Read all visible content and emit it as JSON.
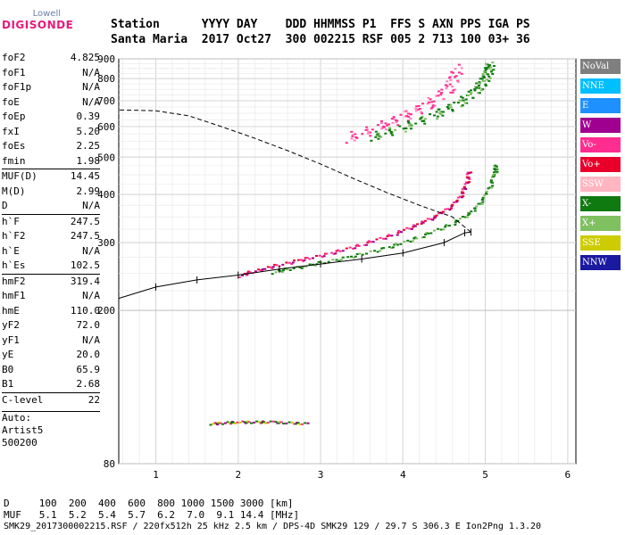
{
  "logo": {
    "top": "Lowell",
    "main": "DIGISONDE"
  },
  "header": {
    "line1": "Station      YYYY DAY    DDD HHMMSS P1  FFS S AXN PPS IGA PS",
    "line2": "Santa Maria  2017 Oct27  300 002215 RSF 005 2 713 100 03+ 36"
  },
  "params": {
    "g1": [
      {
        "k": "foF2",
        "v": "4.825"
      },
      {
        "k": "foF1",
        "v": "N/A"
      },
      {
        "k": "foF1p",
        "v": "N/A"
      },
      {
        "k": "foE",
        "v": "N/A"
      },
      {
        "k": "foEp",
        "v": "0.39"
      },
      {
        "k": "fxI",
        "v": "5.20"
      },
      {
        "k": "foEs",
        "v": "2.25"
      },
      {
        "k": "fmin",
        "v": "1.98"
      }
    ],
    "g2": [
      {
        "k": "MUF(D)",
        "v": "14.45"
      },
      {
        "k": "M(D)",
        "v": "2.99"
      },
      {
        "k": "D",
        "v": "N/A"
      }
    ],
    "g3": [
      {
        "k": "h`F",
        "v": "247.5"
      },
      {
        "k": "h`F2",
        "v": "247.5"
      },
      {
        "k": "h`E",
        "v": "N/A"
      },
      {
        "k": "h`Es",
        "v": "102.5"
      }
    ],
    "g4": [
      {
        "k": "hmF2",
        "v": "319.4"
      },
      {
        "k": "hmF1",
        "v": "N/A"
      },
      {
        "k": "hmE",
        "v": "110.0"
      },
      {
        "k": "yF2",
        "v": "72.0"
      },
      {
        "k": "yF1",
        "v": "N/A"
      },
      {
        "k": "yE",
        "v": "20.0"
      },
      {
        "k": "B0",
        "v": "65.9"
      },
      {
        "k": "B1",
        "v": "2.68"
      }
    ],
    "g5": [
      {
        "k": "C-level",
        "v": "22"
      }
    ],
    "auto": [
      "Auto:",
      "Artist5",
      "500200"
    ]
  },
  "legend": [
    {
      "label": "NoVal",
      "color": "#7f7f7f"
    },
    {
      "label": "NNE",
      "color": "#00bfff"
    },
    {
      "label": "E",
      "color": "#1e90ff"
    },
    {
      "label": "W",
      "color": "#a0008f"
    },
    {
      "label": "Vo-",
      "color": "#ff2d8f"
    },
    {
      "label": "Vo+",
      "color": "#e8002a"
    },
    {
      "label": "SSW",
      "color": "#ffb6c1"
    },
    {
      "label": "X-",
      "color": "#0f7a0f"
    },
    {
      "label": "X+",
      "color": "#7fc060"
    },
    {
      "label": "SSE",
      "color": "#cccc00"
    },
    {
      "label": "NNW",
      "color": "#1a1aa0"
    }
  ],
  "footer": {
    "line1": "D     100  200  400  600  800 1000 1500 3000 [km]",
    "line2": "MUF   5.1  5.2  5.4  5.7  6.2  7.0  9.1 14.4 [MHz]",
    "line3": "SMK29_2017300002215.RSF / 220fx512h 25 kHz 2.5 km / DPS-4D SMK29 129 / 29.7 S 306.3 E Ion2Png 1.3.20"
  },
  "chart_data": {
    "type": "scatter",
    "xlim": [
      0.55,
      6.1
    ],
    "ylim": [
      80,
      900
    ],
    "x_ticks": [
      1,
      2,
      3,
      4,
      5,
      6
    ],
    "y_ticks": [
      80,
      200,
      300,
      400,
      500,
      600,
      700,
      800,
      900
    ],
    "grid": true,
    "legend_placement": "right",
    "traces": {
      "o_trace": [
        [
          2.0,
          247
        ],
        [
          2.3,
          258
        ],
        [
          2.7,
          270
        ],
        [
          3.1,
          282
        ],
        [
          3.5,
          298
        ],
        [
          3.9,
          318
        ],
        [
          4.2,
          338
        ],
        [
          4.45,
          358
        ],
        [
          4.65,
          385
        ],
        [
          4.75,
          420
        ],
        [
          4.8,
          465
        ]
      ],
      "x_trace": [
        [
          2.4,
          252
        ],
        [
          2.8,
          262
        ],
        [
          3.3,
          275
        ],
        [
          3.8,
          292
        ],
        [
          4.2,
          312
        ],
        [
          4.6,
          338
        ],
        [
          4.85,
          365
        ],
        [
          5.0,
          400
        ],
        [
          5.1,
          450
        ],
        [
          5.12,
          480
        ]
      ],
      "upper_o": [
        [
          3.3,
          560
        ],
        [
          3.7,
          600
        ],
        [
          4.0,
          640
        ],
        [
          4.3,
          690
        ],
        [
          4.55,
          760
        ],
        [
          4.65,
          860
        ]
      ],
      "upper_x": [
        [
          3.6,
          565
        ],
        [
          4.0,
          600
        ],
        [
          4.4,
          650
        ],
        [
          4.7,
          700
        ],
        [
          4.9,
          760
        ],
        [
          5.0,
          820
        ],
        [
          5.05,
          880
        ]
      ],
      "es_trace": [
        [
          1.65,
          102
        ],
        [
          2.0,
          103
        ],
        [
          2.4,
          103
        ],
        [
          2.85,
          102
        ]
      ],
      "profile": [
        [
          0.55,
          215
        ],
        [
          1.0,
          230
        ],
        [
          1.5,
          240
        ],
        [
          2.0,
          247
        ],
        [
          2.5,
          256
        ],
        [
          3.0,
          264
        ],
        [
          3.5,
          272
        ],
        [
          4.0,
          282
        ],
        [
          4.5,
          300
        ],
        [
          4.75,
          318
        ],
        [
          4.825,
          319.4
        ]
      ],
      "profile_top": [
        [
          4.825,
          319.4
        ],
        [
          4.6,
          350
        ],
        [
          4.2,
          375
        ],
        [
          3.8,
          405
        ],
        [
          3.4,
          440
        ],
        [
          3.0,
          480
        ],
        [
          2.6,
          520
        ],
        [
          2.2,
          560
        ],
        [
          1.8,
          600
        ],
        [
          1.4,
          640
        ],
        [
          1.0,
          660
        ],
        [
          0.55,
          663
        ]
      ]
    }
  }
}
